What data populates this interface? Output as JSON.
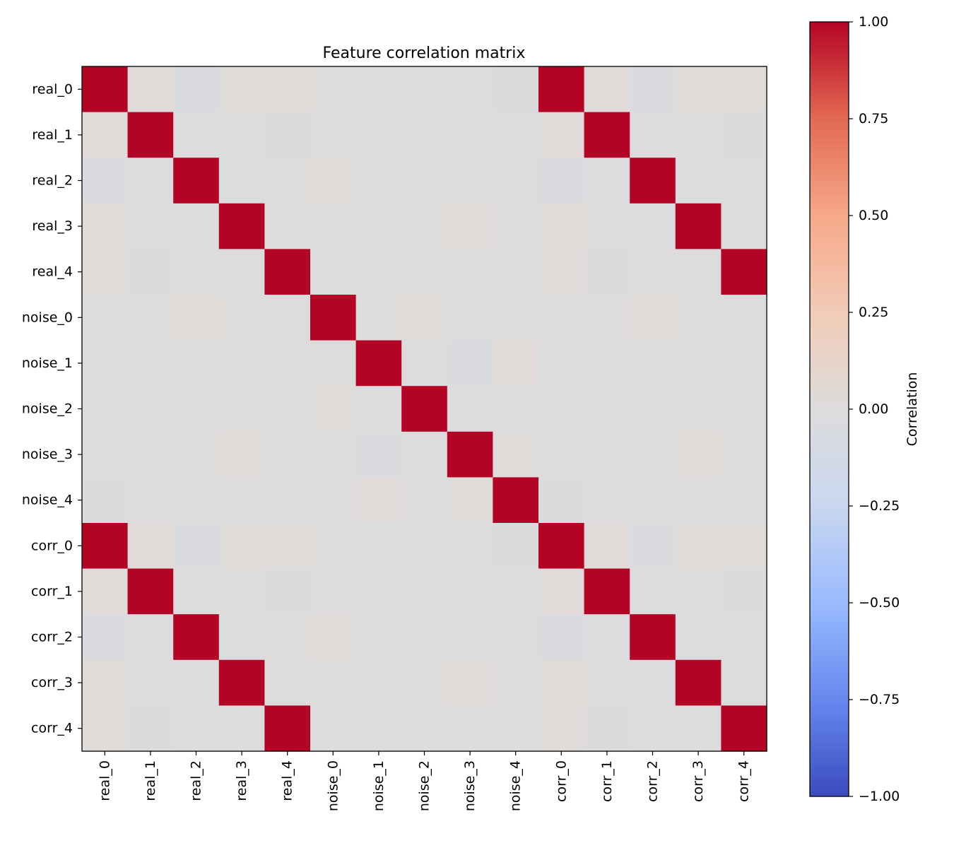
{
  "chart_data": {
    "type": "heatmap",
    "title": "Feature correlation matrix",
    "xlabel": "",
    "ylabel": "",
    "row_labels": [
      "real_0",
      "real_1",
      "real_2",
      "real_3",
      "real_4",
      "noise_0",
      "noise_1",
      "noise_2",
      "noise_3",
      "noise_4",
      "corr_0",
      "corr_1",
      "corr_2",
      "corr_3",
      "corr_4"
    ],
    "col_labels": [
      "real_0",
      "real_1",
      "real_2",
      "real_3",
      "real_4",
      "noise_0",
      "noise_1",
      "noise_2",
      "noise_3",
      "noise_4",
      "corr_0",
      "corr_1",
      "corr_2",
      "corr_3",
      "corr_4"
    ],
    "values": [
      [
        1.0,
        0.03,
        -0.04,
        0.02,
        0.02,
        0.01,
        -0.02,
        -0.01,
        -0.01,
        -0.03,
        1.0,
        0.03,
        -0.04,
        0.02,
        0.02
      ],
      [
        0.03,
        1.0,
        0.0,
        0.01,
        -0.03,
        0.01,
        0.0,
        0.0,
        0.0,
        -0.01,
        0.03,
        1.0,
        0.0,
        0.01,
        -0.03
      ],
      [
        -0.04,
        0.0,
        1.0,
        -0.02,
        0.01,
        0.02,
        0.0,
        0.0,
        0.0,
        0.0,
        -0.04,
        0.0,
        1.0,
        -0.02,
        0.01
      ],
      [
        0.02,
        0.01,
        -0.02,
        1.0,
        0.0,
        0.01,
        0.0,
        0.01,
        0.03,
        0.0,
        0.02,
        0.01,
        -0.02,
        1.0,
        0.0
      ],
      [
        0.02,
        -0.03,
        0.01,
        0.0,
        1.0,
        0.0,
        0.0,
        0.0,
        0.0,
        -0.02,
        0.02,
        -0.03,
        0.01,
        0.0,
        1.0
      ],
      [
        0.01,
        0.01,
        0.02,
        0.01,
        0.0,
        1.0,
        0.01,
        0.02,
        0.0,
        0.0,
        0.01,
        0.01,
        0.02,
        0.01,
        0.0
      ],
      [
        -0.02,
        0.0,
        0.0,
        0.0,
        0.0,
        0.01,
        1.0,
        0.0,
        -0.04,
        0.03,
        -0.02,
        0.0,
        0.0,
        0.0,
        0.0
      ],
      [
        -0.01,
        0.0,
        0.0,
        0.01,
        0.0,
        0.02,
        0.0,
        1.0,
        0.0,
        0.0,
        -0.01,
        0.0,
        0.0,
        0.01,
        0.0
      ],
      [
        -0.01,
        0.0,
        0.0,
        0.03,
        0.0,
        0.0,
        -0.04,
        0.0,
        1.0,
        0.02,
        -0.01,
        0.0,
        0.0,
        0.03,
        0.0
      ],
      [
        -0.03,
        -0.01,
        0.0,
        0.0,
        -0.02,
        0.0,
        0.03,
        0.0,
        0.02,
        1.0,
        -0.03,
        -0.01,
        0.0,
        0.0,
        -0.02
      ],
      [
        1.0,
        0.03,
        -0.04,
        0.02,
        0.02,
        0.01,
        -0.02,
        -0.01,
        -0.01,
        -0.03,
        1.0,
        0.03,
        -0.04,
        0.02,
        0.02
      ],
      [
        0.03,
        1.0,
        0.0,
        0.01,
        -0.03,
        0.01,
        0.0,
        0.0,
        0.0,
        -0.01,
        0.03,
        1.0,
        0.0,
        0.01,
        -0.03
      ],
      [
        -0.04,
        0.0,
        1.0,
        -0.02,
        0.01,
        0.02,
        0.0,
        0.0,
        0.0,
        0.0,
        -0.04,
        0.0,
        1.0,
        -0.02,
        0.01
      ],
      [
        0.02,
        0.01,
        -0.02,
        1.0,
        0.0,
        0.01,
        0.0,
        0.01,
        0.03,
        0.0,
        0.02,
        0.01,
        -0.02,
        1.0,
        0.0
      ],
      [
        0.02,
        -0.03,
        0.01,
        0.0,
        1.0,
        0.0,
        0.0,
        0.0,
        0.0,
        -0.02,
        0.02,
        -0.03,
        0.01,
        0.0,
        1.0
      ]
    ],
    "colorbar": {
      "label": "Correlation",
      "range": [
        -1.0,
        1.0
      ],
      "ticks": [
        1.0,
        0.75,
        0.5,
        0.25,
        0.0,
        -0.25,
        -0.5,
        -0.75,
        -1.0
      ],
      "tick_labels": [
        "1.00",
        "0.75",
        "0.50",
        "0.25",
        "0.00",
        "−0.25",
        "−0.50",
        "−0.75",
        "−1.00"
      ],
      "colormap": "coolwarm",
      "color_stops": [
        "#3b4cc0",
        "#6788ee",
        "#9abbff",
        "#c9d7f0",
        "#dddcdc",
        "#f2cbb7",
        "#f7a889",
        "#e26952",
        "#b40426"
      ]
    },
    "grid": false
  }
}
